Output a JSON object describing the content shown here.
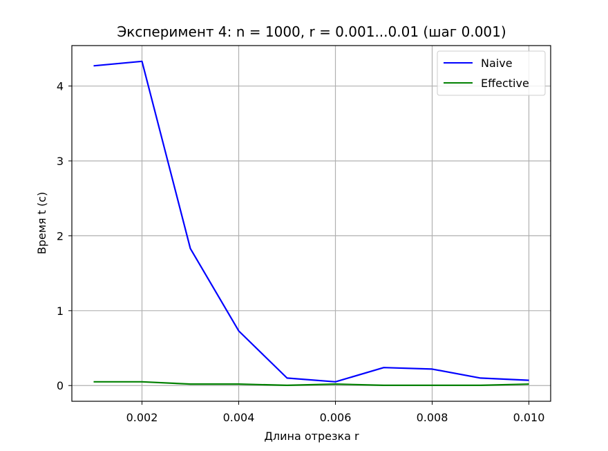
{
  "chart_data": {
    "type": "line",
    "title": "Эксперимент 4: n = 1000, r = 0.001...0.01 (шаг 0.001)",
    "xlabel": "Длина отрезка r",
    "ylabel": "Время t (с)",
    "x": [
      0.001,
      0.002,
      0.003,
      0.004,
      0.005,
      0.006,
      0.007,
      0.008,
      0.009,
      0.01
    ],
    "series": [
      {
        "name": "Naive",
        "color": "#0000ff",
        "values": [
          4.27,
          4.33,
          1.83,
          0.73,
          0.1,
          0.05,
          0.24,
          0.22,
          0.1,
          0.07
        ]
      },
      {
        "name": "Effective",
        "color": "#008000",
        "values": [
          0.05,
          0.05,
          0.02,
          0.02,
          0.003,
          0.02,
          0.003,
          0.003,
          0.003,
          0.02
        ]
      }
    ],
    "xlim": [
      0.00055,
      0.01045
    ],
    "ylim": [
      -0.21,
      4.54
    ],
    "xticks": [
      0.002,
      0.004,
      0.006,
      0.008,
      0.01
    ],
    "xtick_labels": [
      "0.002",
      "0.004",
      "0.006",
      "0.008",
      "0.010"
    ],
    "yticks": [
      0,
      1,
      2,
      3,
      4
    ],
    "ytick_labels": [
      "0",
      "1",
      "2",
      "3",
      "4"
    ],
    "grid": true,
    "legend_position": "top-right"
  }
}
